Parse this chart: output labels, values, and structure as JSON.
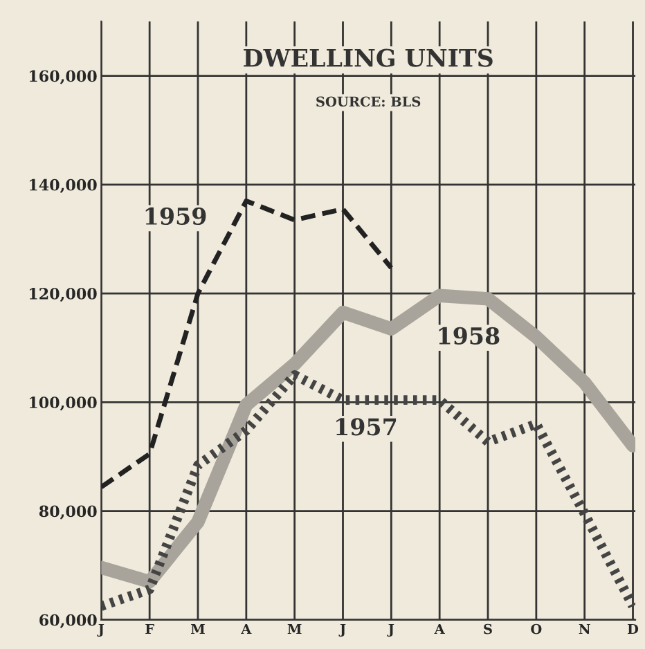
{
  "chart_data": {
    "type": "line",
    "title": "DWELLING UNITS",
    "subtitle": "SOURCE: BLS",
    "categories": [
      "J",
      "F",
      "M",
      "A",
      "M",
      "J",
      "J",
      "A",
      "S",
      "O",
      "N",
      "D"
    ],
    "series": [
      {
        "name": "1959",
        "color": "#222222",
        "line_style": "dashed",
        "values": [
          84400,
          90500,
          120000,
          137000,
          133500,
          135500,
          124700,
          null,
          null,
          null,
          null,
          null
        ]
      },
      {
        "name": "1958",
        "color": "#a8a49c",
        "line_style": "solid",
        "values": [
          69600,
          67000,
          78000,
          99500,
          107000,
          116500,
          113500,
          119600,
          119000,
          112000,
          103600,
          92000
        ]
      },
      {
        "name": "1957",
        "color": "#444444",
        "line_style": "dotted",
        "values": [
          62500,
          65600,
          88400,
          94800,
          105000,
          100400,
          100400,
          100400,
          92700,
          96000,
          79500,
          62500
        ]
      }
    ],
    "ylim": [
      60000,
      170000
    ],
    "yticks": [
      {
        "value": 60000,
        "label": "60,000"
      },
      {
        "value": 80000,
        "label": "80,000"
      },
      {
        "value": 100000,
        "label": "100,000"
      },
      {
        "value": 120000,
        "label": "120,000"
      },
      {
        "value": 140000,
        "label": "140,000"
      },
      {
        "value": 160000,
        "label": "160,000"
      }
    ],
    "grid": true,
    "legend": false,
    "marker": "none"
  }
}
